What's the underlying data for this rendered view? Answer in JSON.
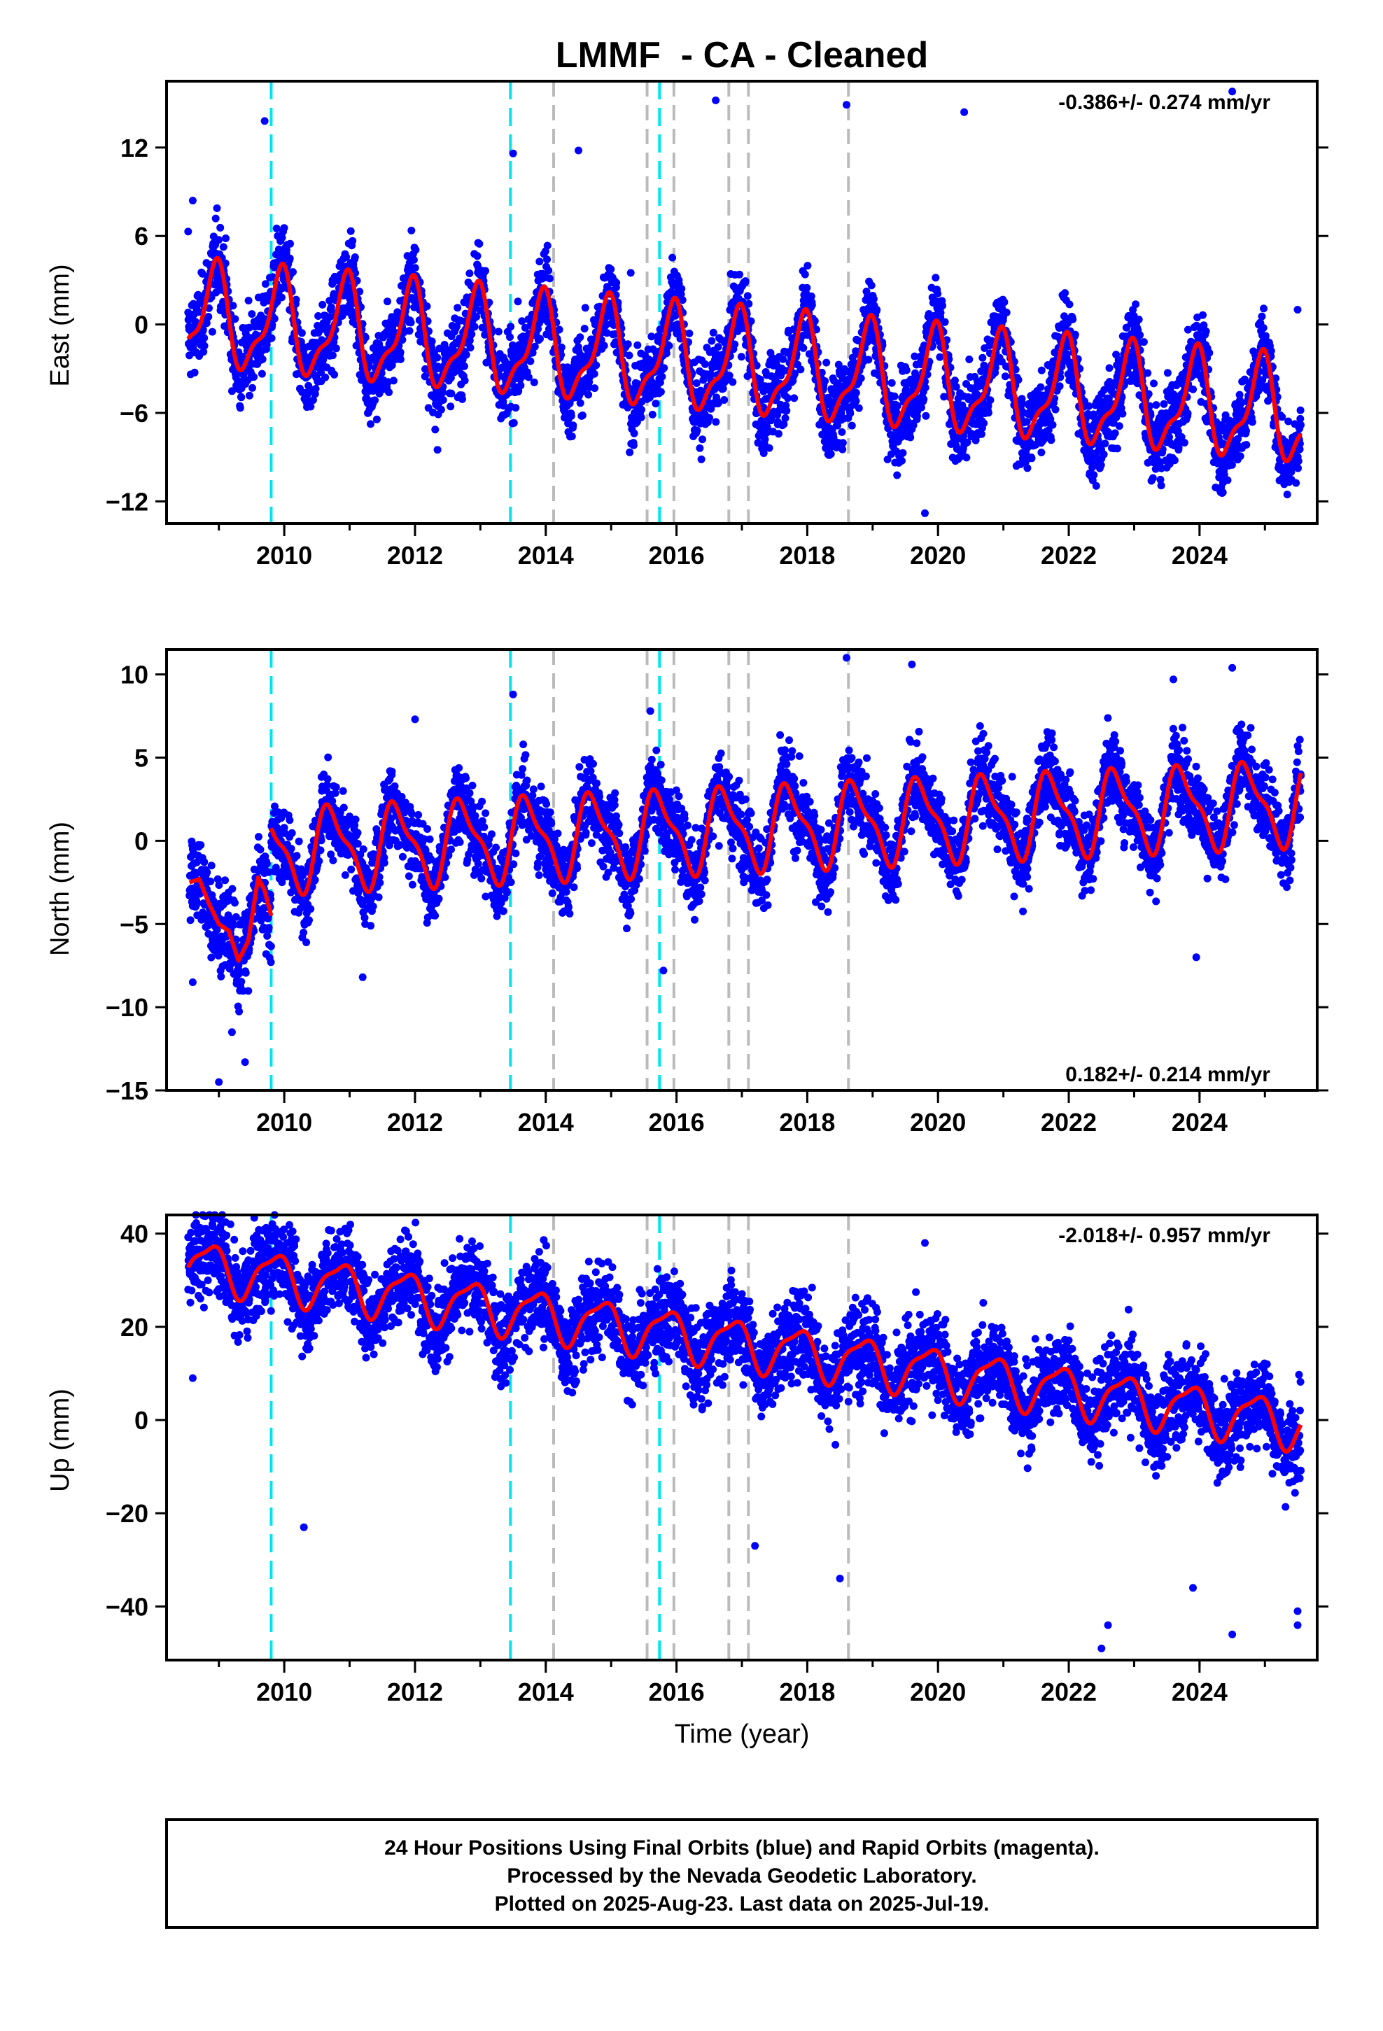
{
  "figure": {
    "title": "LMMF  - CA - Cleaned",
    "xlabel": "Time (year)",
    "footer": [
      "24 Hour Positions Using Final Orbits (blue) and Rapid Orbits (magenta).",
      "Processed by the Nevada Geodetic Laboratory.",
      "Plotted on 2025-Aug-23. Last data on 2025-Jul-19."
    ],
    "colors": {
      "points": "#0000ff",
      "model": "#ff0000",
      "antenna_change": "#00e5ee",
      "equipment_change": "#bbbbbb",
      "frame": "#000000"
    }
  },
  "chart_data": [
    {
      "type": "scatter",
      "name": "east",
      "ylabel": "East (mm)",
      "rate": "-0.386+/- 0.274 mm/yr",
      "rate_position": "top-right",
      "xlim": [
        2008.2,
        2025.8
      ],
      "ylim": [
        -13.5,
        16.5
      ],
      "x_ticks": [
        2010,
        2012,
        2014,
        2016,
        2018,
        2020,
        2022,
        2024
      ],
      "y_ticks": [
        -12,
        -6,
        0,
        6,
        12
      ],
      "model": {
        "start": 2008.53,
        "end": 2025.55,
        "offset": 0.5,
        "trend": -0.386,
        "amplitude": 3.2,
        "phase": 2.0,
        "semi_amplitude": 1.2,
        "semi_phase": 1.5
      },
      "scatter_sd": 1.9,
      "series": [
        {
          "values": [
            [
              2008.53,
              6.3
            ],
            [
              2008.6,
              8.4
            ],
            [
              2009.7,
              13.8
            ],
            [
              2009.9,
              6.0
            ],
            [
              2013.5,
              11.6
            ],
            [
              2014.5,
              11.8
            ],
            [
              2016.6,
              15.2
            ],
            [
              2018.6,
              14.9
            ],
            [
              2019.8,
              -12.8
            ],
            [
              2020.4,
              14.4
            ],
            [
              2021.2,
              -9.6
            ],
            [
              2022.5,
              -9.1
            ],
            [
              2024.5,
              15.8
            ],
            [
              2024.4,
              -8.9
            ],
            [
              2025.5,
              1.0
            ],
            [
              2008.9,
              -0.5
            ],
            [
              2011.2,
              -3.0
            ],
            [
              2015.3,
              3.5
            ],
            [
              2017.8,
              -5.0
            ],
            [
              2023.3,
              -4.0
            ]
          ]
        }
      ],
      "antenna_changes": [
        2009.8,
        2013.46,
        2015.74
      ],
      "equipment_changes": [
        2014.12,
        2015.55,
        2015.96,
        2016.8,
        2017.1,
        2018.63
      ]
    },
    {
      "type": "scatter",
      "name": "north",
      "ylabel": "North (mm)",
      "rate": "0.182+/- 0.214 mm/yr",
      "rate_position": "bottom-right",
      "xlim": [
        2008.2,
        2025.8
      ],
      "ylim": [
        -15.0,
        11.5
      ],
      "x_ticks": [
        2010,
        2012,
        2014,
        2016,
        2018,
        2020,
        2022,
        2024
      ],
      "y_ticks": [
        -15,
        -10,
        -5,
        0,
        5,
        10
      ],
      "model": {
        "start": 2009.8,
        "end": 2025.55,
        "offset": -0.8,
        "trend": 0.182,
        "amplitude": 2.3,
        "phase": 3.3,
        "semi_amplitude": 0.8,
        "semi_phase": 0.5
      },
      "early_model": {
        "start": 2008.55,
        "end": 2009.8,
        "values": [
          [
            2008.55,
            -2.5
          ],
          [
            2008.7,
            -2.3
          ],
          [
            2008.85,
            -3.8
          ],
          [
            2009.0,
            -5.0
          ],
          [
            2009.15,
            -5.4
          ],
          [
            2009.3,
            -7.2
          ],
          [
            2009.45,
            -6.0
          ],
          [
            2009.6,
            -2.2
          ],
          [
            2009.7,
            -3.0
          ],
          [
            2009.8,
            -4.5
          ]
        ]
      },
      "scatter_sd": 1.6,
      "series": [
        {
          "values": [
            [
              2008.6,
              -0.5
            ],
            [
              2008.6,
              -8.5
            ],
            [
              2009.0,
              -14.5
            ],
            [
              2009.2,
              -11.5
            ],
            [
              2009.4,
              -13.3
            ],
            [
              2013.5,
              8.8
            ],
            [
              2015.6,
              7.8
            ],
            [
              2015.8,
              -7.8
            ],
            [
              2018.6,
              11.0
            ],
            [
              2019.6,
              10.6
            ],
            [
              2024.5,
              10.4
            ],
            [
              2023.6,
              9.7
            ],
            [
              2023.95,
              -7.0
            ],
            [
              2025.5,
              5.7
            ],
            [
              2011.2,
              -8.2
            ],
            [
              2012.0,
              7.3
            ]
          ]
        }
      ],
      "antenna_changes": [
        2009.8,
        2013.46,
        2015.74
      ],
      "equipment_changes": [
        2014.12,
        2015.55,
        2015.96,
        2016.8,
        2017.1,
        2018.63
      ]
    },
    {
      "type": "scatter",
      "name": "up",
      "ylabel": "Up (mm)",
      "rate": "-2.018+/- 0.957 mm/yr",
      "rate_position": "top-right",
      "xlim": [
        2008.2,
        2025.8
      ],
      "ylim": [
        -51.5,
        44.0
      ],
      "x_ticks": [
        2010,
        2012,
        2014,
        2016,
        2018,
        2020,
        2022,
        2024
      ],
      "y_ticks": [
        -40,
        -20,
        0,
        20,
        40
      ],
      "model": {
        "start": 2008.53,
        "end": 2025.55,
        "offset": 33.5,
        "trend": -2.018,
        "amplitude": 5.0,
        "phase": 2.5,
        "semi_amplitude": 1.5,
        "semi_phase": 1.0
      },
      "scatter_sd": 6.5,
      "series": [
        {
          "values": [
            [
              2008.53,
              28.0
            ],
            [
              2008.6,
              9.0
            ],
            [
              2008.9,
              42.0
            ],
            [
              2009.9,
              36.0
            ],
            [
              2010.3,
              -23.0
            ],
            [
              2019.8,
              38.0
            ],
            [
              2022.5,
              -49.0
            ],
            [
              2022.6,
              -44.0
            ],
            [
              2024.5,
              -46.0
            ],
            [
              2025.5,
              -44.0
            ],
            [
              2025.5,
              -41.0
            ],
            [
              2012.8,
              37.0
            ],
            [
              2017.2,
              -27.0
            ],
            [
              2023.9,
              -36.0
            ],
            [
              2018.5,
              -34.0
            ]
          ]
        }
      ],
      "antenna_changes": [
        2009.8,
        2013.46,
        2015.74
      ],
      "equipment_changes": [
        2014.12,
        2015.55,
        2015.96,
        2016.8,
        2017.1,
        2018.63
      ]
    }
  ]
}
